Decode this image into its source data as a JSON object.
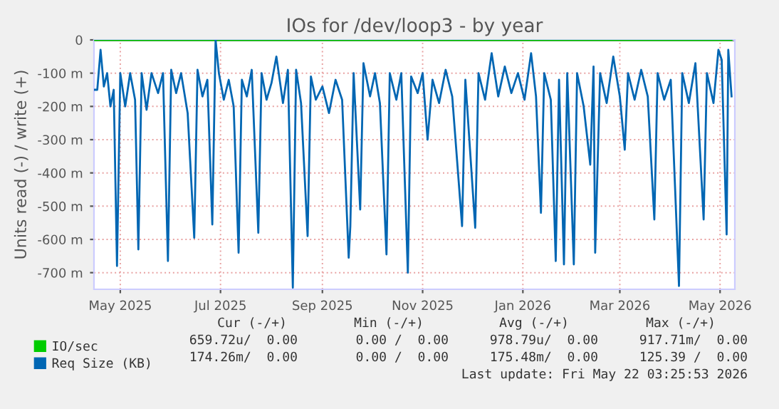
{
  "chart_data": {
    "type": "line",
    "title": "IOs for /dev/loop3 - by year",
    "ylabel": "Units read (-) / write (+)",
    "xlim": [
      "2025-04-15",
      "2026-05-10"
    ],
    "xticks": [
      {
        "value": "2025-05-01",
        "label": "May 2025"
      },
      {
        "value": "2025-07-01",
        "label": "Jul 2025"
      },
      {
        "value": "2025-09-01",
        "label": "Sep 2025"
      },
      {
        "value": "2025-11-01",
        "label": "Nov 2025"
      },
      {
        "value": "2026-01-01",
        "label": "Jan 2026"
      },
      {
        "value": "2026-03-01",
        "label": "Mar 2026"
      },
      {
        "value": "2026-05-01",
        "label": "May 2026"
      }
    ],
    "ylim": [
      -750,
      0
    ],
    "yticks": [
      {
        "value": 0,
        "label": "0"
      },
      {
        "value": -100,
        "label": "-100 m"
      },
      {
        "value": -200,
        "label": "-200 m"
      },
      {
        "value": -300,
        "label": "-300 m"
      },
      {
        "value": -400,
        "label": "-400 m"
      },
      {
        "value": -500,
        "label": "-500 m"
      },
      {
        "value": -600,
        "label": "-600 m"
      },
      {
        "value": -700,
        "label": "-700 m"
      }
    ],
    "grid": true,
    "legend": "bottom left",
    "ref_lines": [
      {
        "axis": "y",
        "value": 0,
        "color": "#000000"
      }
    ],
    "series": [
      {
        "name": "IO/sec",
        "color": "#00cc00",
        "x": [
          "2025-04-15",
          "2026-05-08"
        ],
        "values": [
          0,
          0
        ]
      },
      {
        "name": "Req Size (KB)",
        "color": "#0066b3",
        "x": [
          "2025-04-15",
          "2025-04-17",
          "2025-04-19",
          "2025-04-21",
          "2025-04-23",
          "2025-04-25",
          "2025-04-27",
          "2025-04-29",
          "2025-05-01",
          "2025-05-04",
          "2025-05-07",
          "2025-05-10",
          "2025-05-12",
          "2025-05-14",
          "2025-05-17",
          "2025-05-20",
          "2025-05-24",
          "2025-05-27",
          "2025-05-30",
          "2025-06-01",
          "2025-06-04",
          "2025-06-07",
          "2025-06-11",
          "2025-06-15",
          "2025-06-17",
          "2025-06-20",
          "2025-06-23",
          "2025-06-26",
          "2025-06-28",
          "2025-06-30",
          "2025-07-03",
          "2025-07-06",
          "2025-07-09",
          "2025-07-12",
          "2025-07-14",
          "2025-07-17",
          "2025-07-20",
          "2025-07-24",
          "2025-07-26",
          "2025-07-29",
          "2025-08-01",
          "2025-08-04",
          "2025-08-08",
          "2025-08-11",
          "2025-08-14",
          "2025-08-16",
          "2025-08-19",
          "2025-08-23",
          "2025-08-25",
          "2025-08-28",
          "2025-09-01",
          "2025-09-05",
          "2025-09-09",
          "2025-09-13",
          "2025-09-17",
          "2025-09-18",
          "2025-09-20",
          "2025-09-24",
          "2025-09-26",
          "2025-09-30",
          "2025-10-03",
          "2025-10-06",
          "2025-10-10",
          "2025-10-12",
          "2025-10-16",
          "2025-10-19",
          "2025-10-23",
          "2025-10-25",
          "2025-10-29",
          "2025-11-01",
          "2025-11-04",
          "2025-11-07",
          "2025-11-11",
          "2025-11-15",
          "2025-11-19",
          "2025-11-25",
          "2025-11-27",
          "2025-12-03",
          "2025-12-05",
          "2025-12-09",
          "2025-12-13",
          "2025-12-17",
          "2025-12-21",
          "2025-12-25",
          "2025-12-29",
          "2026-01-02",
          "2026-01-06",
          "2026-01-09",
          "2026-01-12",
          "2026-01-14",
          "2026-01-18",
          "2026-01-21",
          "2026-01-23",
          "2026-01-26",
          "2026-01-28",
          "2026-02-01",
          "2026-02-03",
          "2026-02-07",
          "2026-02-11",
          "2026-02-13",
          "2026-02-14",
          "2026-02-17",
          "2026-02-21",
          "2026-02-25",
          "2026-03-01",
          "2026-03-04",
          "2026-03-06",
          "2026-03-10",
          "2026-03-14",
          "2026-03-18",
          "2026-03-22",
          "2026-03-24",
          "2026-03-28",
          "2026-04-01",
          "2026-04-06",
          "2026-04-08",
          "2026-04-12",
          "2026-04-16",
          "2026-04-21",
          "2026-04-23",
          "2026-04-27",
          "2026-04-30",
          "2026-05-02",
          "2026-05-05",
          "2026-05-06",
          "2026-05-08"
        ],
        "values": [
          -150,
          -150,
          -30,
          -140,
          -100,
          -200,
          -150,
          -680,
          -100,
          -200,
          -100,
          -180,
          -630,
          -100,
          -210,
          -100,
          -160,
          -100,
          -665,
          -90,
          -160,
          -100,
          -220,
          -595,
          -90,
          -170,
          -120,
          -555,
          0,
          -100,
          -180,
          -120,
          -200,
          -640,
          -120,
          -170,
          -90,
          -580,
          -100,
          -180,
          -130,
          -50,
          -190,
          -90,
          -745,
          -90,
          -190,
          -590,
          -110,
          -180,
          -140,
          -220,
          -120,
          -180,
          -655,
          -560,
          -100,
          -510,
          -70,
          -170,
          -100,
          -190,
          -645,
          -100,
          -180,
          -100,
          -700,
          -110,
          -160,
          -100,
          -300,
          -120,
          -190,
          -90,
          -170,
          -560,
          -120,
          -565,
          -100,
          -180,
          -40,
          -170,
          -80,
          -160,
          -100,
          -180,
          -40,
          -170,
          -520,
          -100,
          -180,
          -665,
          -120,
          -675,
          -100,
          -675,
          -100,
          -200,
          -375,
          -80,
          -640,
          -100,
          -190,
          -50,
          -170,
          -330,
          -100,
          -180,
          -90,
          -170,
          -540,
          -100,
          -180,
          -120,
          -740,
          -100,
          -190,
          -70,
          -540,
          -100,
          -190,
          -30,
          -60,
          -585,
          -30,
          -170
        ]
      }
    ],
    "annotations": [
      "Cur (-/+)",
      "Min (-/+)",
      "Avg (-/+)",
      "Max (-/+)",
      "659.72u/  0.00",
      "0.00 /  0.00",
      "978.79u/  0.00",
      "917.71m/  0.00",
      "174.26m/  0.00",
      "0.00 /  0.00",
      "175.48m/  0.00",
      "125.39 /  0.00",
      "Last update: Fri May 22 03:25:53 2026"
    ]
  }
}
